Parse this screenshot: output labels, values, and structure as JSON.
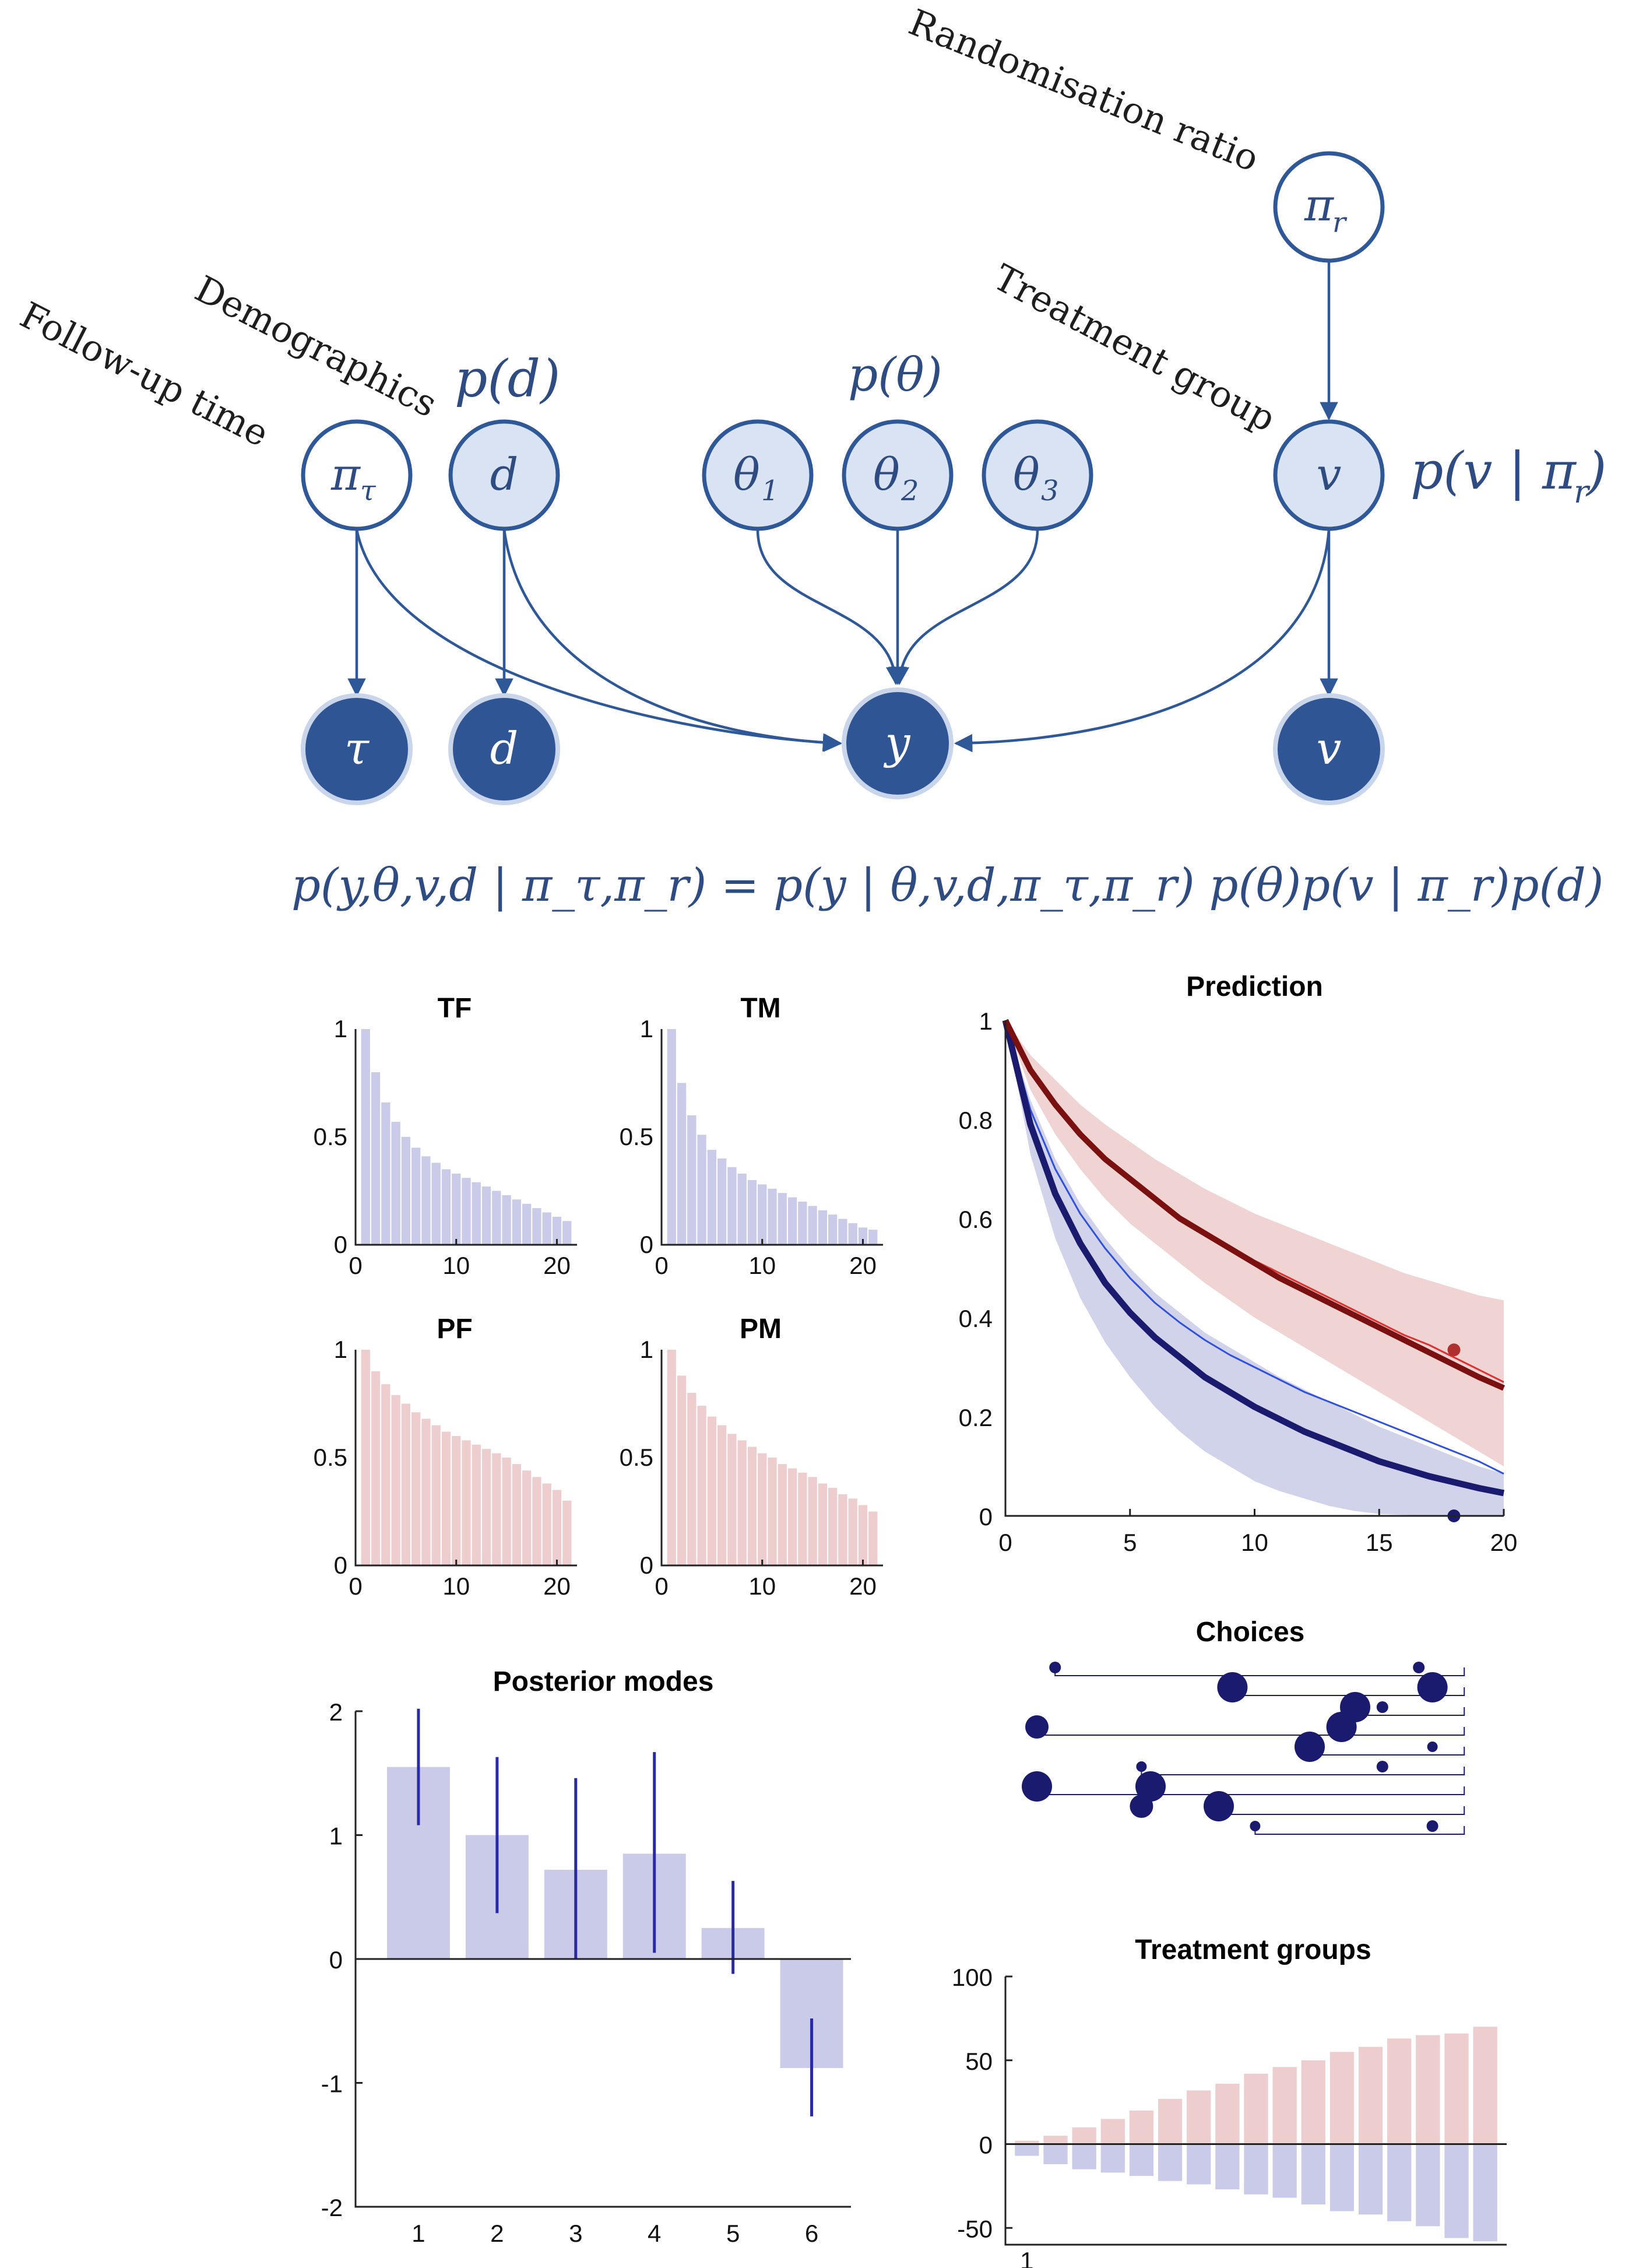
{
  "diagram": {
    "labels": {
      "randomisation": "Randomisation ratio",
      "treatment_group": "Treatment group",
      "demographics": "Demographics",
      "follow_up": "Follow-up time"
    },
    "nodes": {
      "pi_r": "π",
      "pi_r_sub": "r",
      "pi_tau": "π",
      "pi_tau_sub": "τ",
      "d": "d",
      "theta": "θ",
      "theta1_sub": "1",
      "theta2_sub": "2",
      "theta3_sub": "3",
      "v": "v",
      "tau_obs": "τ",
      "d_obs": "d",
      "y_obs": "y",
      "v_obs": "v"
    },
    "priors": {
      "p_d": "p(d)",
      "p_theta": "p(θ)",
      "p_v": "p(v | π",
      "p_v_sub": "r",
      "p_v_close": ")"
    },
    "equation": "p(y,θ,v,d | π_τ,π_r) = p(y | θ,v,d,π_τ,π_r)  p(θ)p(v | π_r)p(d)"
  },
  "colors": {
    "blue_fill": "#c9cbe8",
    "red_fill": "#edcdcd",
    "node_dark": "#2f5595",
    "node_light": "#dae3f3",
    "navy": "#1a1a6e",
    "red_line": "#7a1010",
    "thin_red": "#e03030",
    "thin_blue": "#3050e0"
  },
  "chart_data": [
    {
      "type": "bar",
      "title": "TF",
      "color": "blue",
      "x": [
        1,
        2,
        3,
        4,
        5,
        6,
        7,
        8,
        9,
        10,
        11,
        12,
        13,
        14,
        15,
        16,
        17,
        18,
        19,
        20,
        21
      ],
      "values": [
        1.0,
        0.8,
        0.66,
        0.57,
        0.5,
        0.45,
        0.41,
        0.38,
        0.35,
        0.33,
        0.31,
        0.29,
        0.27,
        0.25,
        0.23,
        0.21,
        0.19,
        0.17,
        0.15,
        0.13,
        0.11
      ],
      "xticks": [
        "0",
        "10",
        "20"
      ],
      "yticks": [
        "0",
        "0.5",
        "1"
      ],
      "xlim": [
        0,
        22
      ],
      "ylim": [
        0,
        1
      ]
    },
    {
      "type": "bar",
      "title": "TM",
      "color": "blue",
      "x": [
        1,
        2,
        3,
        4,
        5,
        6,
        7,
        8,
        9,
        10,
        11,
        12,
        13,
        14,
        15,
        16,
        17,
        18,
        19,
        20,
        21
      ],
      "values": [
        1.0,
        0.75,
        0.6,
        0.51,
        0.44,
        0.4,
        0.36,
        0.33,
        0.3,
        0.28,
        0.26,
        0.24,
        0.22,
        0.2,
        0.18,
        0.16,
        0.14,
        0.12,
        0.1,
        0.08,
        0.07
      ],
      "xticks": [
        "0",
        "10",
        "20"
      ],
      "yticks": [
        "0",
        "0.5",
        "1"
      ],
      "xlim": [
        0,
        22
      ],
      "ylim": [
        0,
        1
      ]
    },
    {
      "type": "bar",
      "title": "PF",
      "color": "red",
      "x": [
        1,
        2,
        3,
        4,
        5,
        6,
        7,
        8,
        9,
        10,
        11,
        12,
        13,
        14,
        15,
        16,
        17,
        18,
        19,
        20,
        21
      ],
      "values": [
        1.0,
        0.9,
        0.84,
        0.79,
        0.75,
        0.71,
        0.68,
        0.65,
        0.62,
        0.6,
        0.58,
        0.56,
        0.54,
        0.52,
        0.5,
        0.47,
        0.44,
        0.41,
        0.38,
        0.35,
        0.3
      ],
      "xticks": [
        "0",
        "10",
        "20"
      ],
      "yticks": [
        "0",
        "0.5",
        "1"
      ],
      "xlim": [
        0,
        22
      ],
      "ylim": [
        0,
        1
      ]
    },
    {
      "type": "bar",
      "title": "PM",
      "color": "red",
      "x": [
        1,
        2,
        3,
        4,
        5,
        6,
        7,
        8,
        9,
        10,
        11,
        12,
        13,
        14,
        15,
        16,
        17,
        18,
        19,
        20,
        21
      ],
      "values": [
        1.0,
        0.88,
        0.8,
        0.74,
        0.69,
        0.65,
        0.61,
        0.58,
        0.55,
        0.52,
        0.5,
        0.47,
        0.45,
        0.43,
        0.41,
        0.38,
        0.36,
        0.33,
        0.31,
        0.28,
        0.25
      ],
      "xticks": [
        "0",
        "10",
        "20"
      ],
      "yticks": [
        "0",
        "0.5",
        "1"
      ],
      "xlim": [
        0,
        22
      ],
      "ylim": [
        0,
        1
      ]
    },
    {
      "type": "line",
      "title": "Prediction",
      "x": [
        0,
        1,
        2,
        3,
        4,
        5,
        6,
        7,
        8,
        9,
        10,
        11,
        12,
        13,
        14,
        15,
        16,
        17,
        18,
        19,
        20
      ],
      "series": [
        {
          "name": "red_mean",
          "values": [
            1.0,
            0.9,
            0.83,
            0.77,
            0.72,
            0.68,
            0.64,
            0.6,
            0.57,
            0.54,
            0.51,
            0.48,
            0.455,
            0.43,
            0.405,
            0.38,
            0.355,
            0.33,
            0.305,
            0.28,
            0.258
          ]
        },
        {
          "name": "red_upper",
          "values": [
            1.0,
            0.93,
            0.88,
            0.83,
            0.79,
            0.755,
            0.72,
            0.69,
            0.66,
            0.635,
            0.61,
            0.59,
            0.57,
            0.55,
            0.53,
            0.51,
            0.49,
            0.475,
            0.46,
            0.445,
            0.435
          ]
        },
        {
          "name": "red_lower",
          "values": [
            1.0,
            0.86,
            0.77,
            0.7,
            0.64,
            0.59,
            0.55,
            0.51,
            0.47,
            0.435,
            0.4,
            0.37,
            0.34,
            0.31,
            0.28,
            0.25,
            0.22,
            0.19,
            0.16,
            0.13,
            0.1
          ]
        },
        {
          "name": "red_thin",
          "values": [
            1.0,
            0.9,
            0.83,
            0.775,
            0.725,
            0.685,
            0.645,
            0.605,
            0.575,
            0.545,
            0.515,
            0.49,
            0.465,
            0.44,
            0.415,
            0.39,
            0.365,
            0.345,
            0.32,
            0.295,
            0.27
          ]
        },
        {
          "name": "blue_mean",
          "values": [
            1.0,
            0.79,
            0.65,
            0.55,
            0.47,
            0.41,
            0.36,
            0.32,
            0.28,
            0.25,
            0.22,
            0.195,
            0.17,
            0.15,
            0.13,
            0.11,
            0.095,
            0.08,
            0.068,
            0.056,
            0.046
          ]
        },
        {
          "name": "blue_upper",
          "values": [
            1.0,
            0.84,
            0.72,
            0.63,
            0.56,
            0.5,
            0.45,
            0.41,
            0.37,
            0.34,
            0.31,
            0.28,
            0.255,
            0.23,
            0.205,
            0.18,
            0.16,
            0.14,
            0.12,
            0.1,
            0.085
          ]
        },
        {
          "name": "blue_lower",
          "values": [
            1.0,
            0.73,
            0.56,
            0.44,
            0.35,
            0.28,
            0.22,
            0.17,
            0.13,
            0.1,
            0.07,
            0.05,
            0.035,
            0.02,
            0.01,
            0.004,
            0.002,
            0.001,
            0,
            0,
            0
          ]
        },
        {
          "name": "blue_thin",
          "values": [
            1.0,
            0.82,
            0.7,
            0.61,
            0.54,
            0.48,
            0.43,
            0.39,
            0.355,
            0.325,
            0.3,
            0.275,
            0.25,
            0.23,
            0.21,
            0.19,
            0.17,
            0.15,
            0.13,
            0.11,
            0.085
          ]
        }
      ],
      "markers": [
        {
          "x": 18,
          "y": 0.335,
          "color": "red"
        },
        {
          "x": 18,
          "y": 0.0,
          "color": "navy"
        }
      ],
      "xticks": [
        "0",
        "5",
        "10",
        "15",
        "20"
      ],
      "yticks": [
        "0",
        "0.2",
        "0.4",
        "0.6",
        "0.8",
        "1"
      ],
      "xlim": [
        0,
        20
      ],
      "ylim": [
        0,
        1
      ]
    },
    {
      "type": "bar",
      "title": "Posterior modes",
      "categories": [
        "1",
        "2",
        "3",
        "4",
        "5",
        "6"
      ],
      "values": [
        1.55,
        1.0,
        0.72,
        0.85,
        0.25,
        -0.88
      ],
      "errors_low": [
        1.08,
        0.37,
        0.0,
        0.05,
        -0.12,
        -1.27
      ],
      "errors_high": [
        2.02,
        1.63,
        1.46,
        1.67,
        0.63,
        -0.48
      ],
      "yticks": [
        "-2",
        "-1",
        "0",
        "1",
        "2"
      ],
      "ylim": [
        -2,
        2
      ]
    },
    {
      "type": "scatter",
      "title": "Choices",
      "rows": [
        {
          "a": 0.09,
          "b": 0.89,
          "sa": 10,
          "sb": 10
        },
        {
          "a": 0.48,
          "b": 0.92,
          "sa": 26,
          "sb": 26
        },
        {
          "a": 0.75,
          "b": 0.81,
          "sa": 26,
          "sb": 10
        },
        {
          "a": 0.05,
          "b": 0.72,
          "sa": 20,
          "sb": 26
        },
        {
          "a": 0.65,
          "b": 0.92,
          "sa": 26,
          "sb": 9
        },
        {
          "a": 0.28,
          "b": 0.81,
          "sa": 9,
          "sb": 10
        },
        {
          "a": 0.05,
          "b": 0.3,
          "sa": 26,
          "sb": 26
        },
        {
          "a": 0.45,
          "b": 0.28,
          "sa": 26,
          "sb": 20
        },
        {
          "a": 0.53,
          "b": 0.92,
          "sa": 9,
          "sb": 10
        }
      ]
    },
    {
      "type": "bar",
      "title": "Treatment groups",
      "categories": [
        "1",
        "2",
        "3",
        "4",
        "5",
        "6",
        "7",
        "8",
        "9",
        "10",
        "11",
        "12",
        "13",
        "14",
        "15",
        "16",
        "17"
      ],
      "positive": [
        2,
        5,
        10,
        15,
        20,
        27,
        32,
        36,
        42,
        46,
        50,
        55,
        58,
        63,
        65,
        66,
        70
      ],
      "negative": [
        -7,
        -12,
        -15,
        -17,
        -19,
        -22,
        -24,
        -27,
        -30,
        -32,
        -36,
        -40,
        -42,
        -46,
        -49,
        -56,
        -58
      ],
      "xticks": [
        "1"
      ],
      "yticks": [
        "-50",
        "0",
        "50",
        "100"
      ],
      "ylim": [
        -58,
        100
      ]
    }
  ],
  "panel_labels": {
    "tf": "TF",
    "tm": "TM",
    "pf": "PF",
    "pm": "PM",
    "prediction": "Prediction",
    "posterior": "Posterior modes",
    "choices": "Choices",
    "treatment": "Treatment groups"
  }
}
